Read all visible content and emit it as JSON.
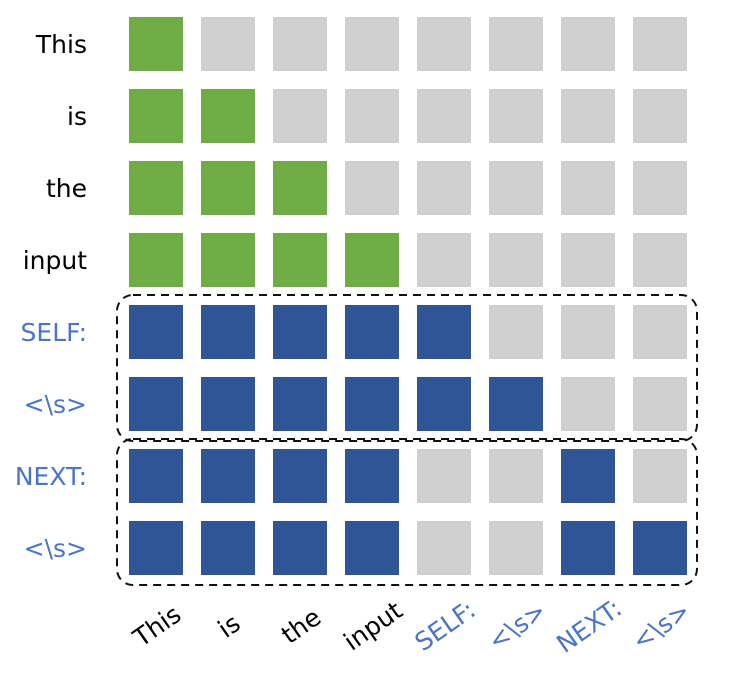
{
  "colors": {
    "input_text": "#000000",
    "special_text": "#4a74c9",
    "input_cell": "#71ad47",
    "special_cell": "#2f5597",
    "empty_cell": "#d0cfcf"
  },
  "rows": [
    {
      "label": "This",
      "kind": "input",
      "cells": [
        1,
        0,
        0,
        0,
        0,
        0,
        0,
        0
      ]
    },
    {
      "label": "is",
      "kind": "input",
      "cells": [
        1,
        1,
        0,
        0,
        0,
        0,
        0,
        0
      ]
    },
    {
      "label": "the",
      "kind": "input",
      "cells": [
        1,
        1,
        1,
        0,
        0,
        0,
        0,
        0
      ]
    },
    {
      "label": "input",
      "kind": "input",
      "cells": [
        1,
        1,
        1,
        1,
        0,
        0,
        0,
        0
      ]
    },
    {
      "label": "SELF:",
      "kind": "special",
      "cells": [
        1,
        1,
        1,
        1,
        1,
        0,
        0,
        0
      ]
    },
    {
      "label": "<\\s>",
      "kind": "special",
      "cells": [
        1,
        1,
        1,
        1,
        1,
        1,
        0,
        0
      ]
    },
    {
      "label": "NEXT:",
      "kind": "special",
      "cells": [
        1,
        1,
        1,
        1,
        0,
        0,
        1,
        0
      ]
    },
    {
      "label": "<\\s>",
      "kind": "special",
      "cells": [
        1,
        1,
        1,
        1,
        0,
        0,
        1,
        1
      ]
    }
  ],
  "columns": [
    {
      "label": "This",
      "kind": "input"
    },
    {
      "label": "is",
      "kind": "input"
    },
    {
      "label": "the",
      "kind": "input"
    },
    {
      "label": "input",
      "kind": "input"
    },
    {
      "label": "SELF:",
      "kind": "special"
    },
    {
      "label": "<\\s>",
      "kind": "special"
    },
    {
      "label": "NEXT:",
      "kind": "special"
    },
    {
      "label": "<\\s>",
      "kind": "special"
    }
  ],
  "groups": [
    {
      "name": "self-group",
      "rows": [
        4,
        5
      ]
    },
    {
      "name": "next-group",
      "rows": [
        6,
        7
      ]
    }
  ]
}
